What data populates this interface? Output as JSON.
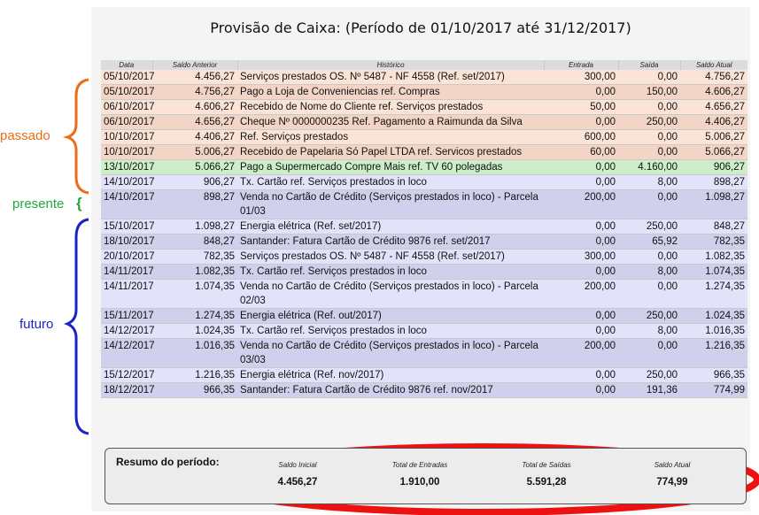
{
  "title": "Provisão de Caixa: (Período de 01/10/2017 até 31/12/2017)",
  "columns": [
    "Data",
    "Saldo Anterior",
    "Histórico",
    "Entrada",
    "Saída",
    "Saldo Atual"
  ],
  "labels": {
    "passado": "passado",
    "presente": "presente",
    "presente_brace": "{",
    "futuro": "futuro",
    "colors": {
      "passado": "#ec6d14",
      "presente": "#22a83a",
      "futuro": "#1a23c8"
    }
  },
  "rows": [
    {
      "group": "past",
      "data": "05/10/2017",
      "saldo_anterior": "4.456,27",
      "historico": "Serviços prestados OS. Nº 5487 - NF 4558 (Ref. set/2017)",
      "entrada": "300,00",
      "saida": "0,00",
      "saldo_atual": "4.756,27"
    },
    {
      "group": "past",
      "data": "05/10/2017",
      "saldo_anterior": "4.756,27",
      "historico": "Pago a Loja de Conveniencias ref. Compras",
      "entrada": "0,00",
      "saida": "150,00",
      "saldo_atual": "4.606,27"
    },
    {
      "group": "past",
      "data": "06/10/2017",
      "saldo_anterior": "4.606,27",
      "historico": "Recebido de Nome do Cliente ref. Serviços prestados",
      "entrada": "50,00",
      "saida": "0,00",
      "saldo_atual": "4.656,27"
    },
    {
      "group": "past",
      "data": "06/10/2017",
      "saldo_anterior": "4.656,27",
      "historico": "Cheque Nº 0000000235 Ref. Pagamento a Raimunda da Silva",
      "entrada": "0,00",
      "saida": "250,00",
      "saldo_atual": "4.406,27"
    },
    {
      "group": "past",
      "data": "10/10/2017",
      "saldo_anterior": "4.406,27",
      "historico": "Ref. Serviços prestados",
      "entrada": "600,00",
      "saida": "0,00",
      "saldo_atual": "5.006,27"
    },
    {
      "group": "past",
      "data": "10/10/2017",
      "saldo_anterior": "5.006,27",
      "historico": "Recebido de Papelaria Só Papel LTDA ref. Servicos prestados",
      "entrada": "60,00",
      "saida": "0,00",
      "saldo_atual": "5.066,27"
    },
    {
      "group": "present",
      "data": "13/10/2017",
      "saldo_anterior": "5.066,27",
      "historico": "Pago a Supermercado Compre Mais ref. TV 60 polegadas",
      "entrada": "0,00",
      "saida": "4.160,00",
      "saldo_atual": "906,27"
    },
    {
      "group": "future",
      "data": "14/10/2017",
      "saldo_anterior": "906,27",
      "historico": "Tx. Cartão ref. Serviços prestados in loco",
      "entrada": "0,00",
      "saida": "8,00",
      "saldo_atual": "898,27"
    },
    {
      "group": "future",
      "data": "14/10/2017",
      "saldo_anterior": "898,27",
      "historico": "Venda no Cartão de Crédito (Serviços prestados in loco) - Parcela 01/03",
      "entrada": "200,00",
      "saida": "0,00",
      "saldo_atual": "1.098,27"
    },
    {
      "group": "future",
      "data": "15/10/2017",
      "saldo_anterior": "1.098,27",
      "historico": "Energia elétrica (Ref. set/2017)",
      "entrada": "0,00",
      "saida": "250,00",
      "saldo_atual": "848,27"
    },
    {
      "group": "future",
      "data": "18/10/2017",
      "saldo_anterior": "848,27",
      "historico": "Santander: Fatura Cartão de Crédito 9876 ref. set/2017",
      "entrada": "0,00",
      "saida": "65,92",
      "saldo_atual": "782,35"
    },
    {
      "group": "future",
      "data": "20/10/2017",
      "saldo_anterior": "782,35",
      "historico": "Serviços prestados OS. Nº 5487 - NF 4558 (Ref. set/2017)",
      "entrada": "300,00",
      "saida": "0,00",
      "saldo_atual": "1.082,35"
    },
    {
      "group": "future",
      "data": "14/11/2017",
      "saldo_anterior": "1.082,35",
      "historico": "Tx. Cartão ref. Serviços prestados in loco",
      "entrada": "0,00",
      "saida": "8,00",
      "saldo_atual": "1.074,35"
    },
    {
      "group": "future",
      "data": "14/11/2017",
      "saldo_anterior": "1.074,35",
      "historico": "Venda no Cartão de Crédito (Serviços prestados in loco) - Parcela 02/03",
      "entrada": "200,00",
      "saida": "0,00",
      "saldo_atual": "1.274,35"
    },
    {
      "group": "future",
      "data": "15/11/2017",
      "saldo_anterior": "1.274,35",
      "historico": "Energia elétrica (Ref. out/2017)",
      "entrada": "0,00",
      "saida": "250,00",
      "saldo_atual": "1.024,35"
    },
    {
      "group": "future",
      "data": "14/12/2017",
      "saldo_anterior": "1.024,35",
      "historico": "Tx. Cartão ref. Serviços prestados in loco",
      "entrada": "0,00",
      "saida": "8,00",
      "saldo_atual": "1.016,35"
    },
    {
      "group": "future",
      "data": "14/12/2017",
      "saldo_anterior": "1.016,35",
      "historico": "Venda no Cartão de Crédito (Serviços prestados in loco) - Parcela 03/03",
      "entrada": "200,00",
      "saida": "0,00",
      "saldo_atual": "1.216,35"
    },
    {
      "group": "future",
      "data": "15/12/2017",
      "saldo_anterior": "1.216,35",
      "historico": "Energia elétrica (Ref. nov/2017)",
      "entrada": "0,00",
      "saida": "250,00",
      "saldo_atual": "966,35"
    },
    {
      "group": "future",
      "data": "18/12/2017",
      "saldo_anterior": "966,35",
      "historico": "Santander: Fatura Cartão de Crédito 9876 ref. nov/2017",
      "entrada": "0,00",
      "saida": "191,36",
      "saldo_atual": "774,99"
    }
  ],
  "summary": {
    "title": "Resumo do período:",
    "saldo_inicial_label": "Saldo Inicial",
    "saldo_inicial": "4.456,27",
    "total_entradas_label": "Total de Entradas",
    "total_entradas": "1.910,00",
    "total_saidas_label": "Total de Saídas",
    "total_saidas": "5.591,28",
    "saldo_atual_label": "Saldo Atual",
    "saldo_atual": "774,99",
    "highlight_color": "#ee1111"
  }
}
